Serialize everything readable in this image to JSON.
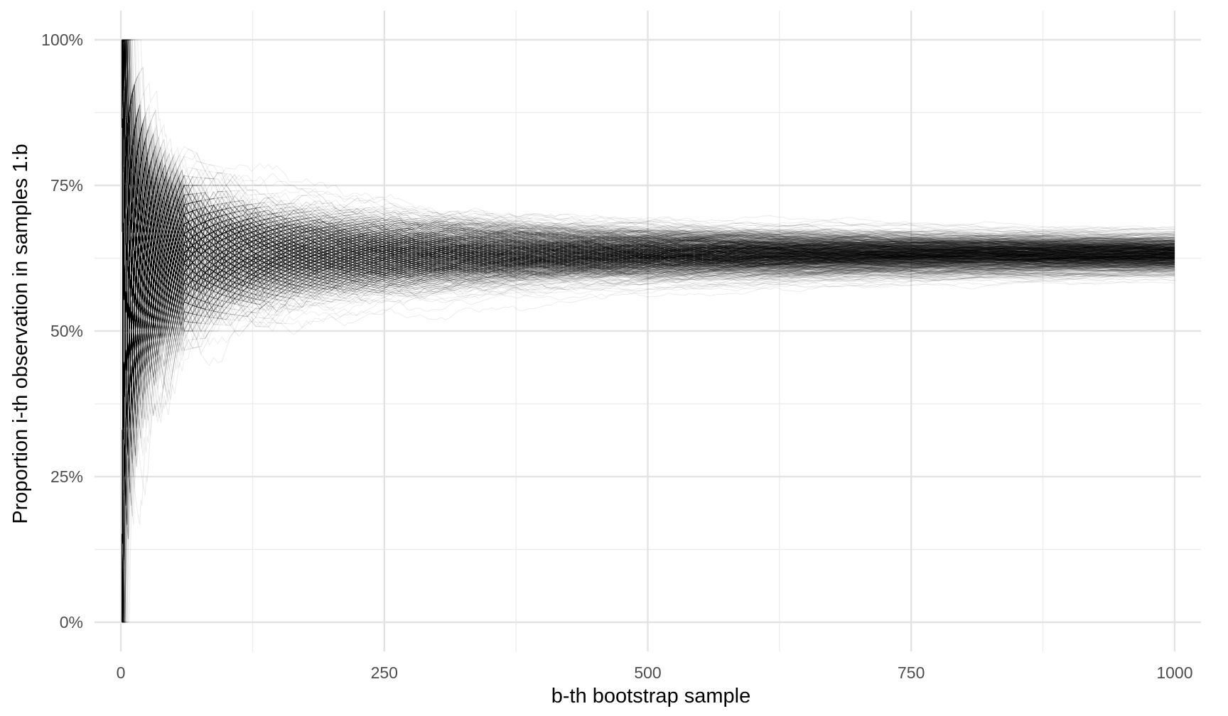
{
  "chart_data": {
    "type": "line",
    "title": "",
    "xlabel": "b-th bootstrap sample",
    "ylabel": "Proportion i-th observation in samples 1:b",
    "x_ticks": [
      0,
      250,
      500,
      750,
      1000
    ],
    "x_tick_labels": [
      "0",
      "250",
      "500",
      "750",
      "1000"
    ],
    "y_ticks": [
      0,
      0.25,
      0.5,
      0.75,
      1.0
    ],
    "y_tick_labels": [
      "0%",
      "25%",
      "50%",
      "75%",
      "100%"
    ],
    "xlim": [
      -25,
      1025
    ],
    "ylim": [
      -0.05,
      1.05
    ],
    "grid": true,
    "legend": "none",
    "line_color": "#000000",
    "line_opacity": 0.07,
    "num_series": 1000,
    "num_bootstrap_samples": 1000,
    "converged_proportion": 0.632,
    "envelope": {
      "b": [
        1,
        5,
        10,
        25,
        50,
        100,
        150,
        250,
        400,
        500,
        750,
        1000
      ],
      "upper": [
        1.0,
        1.0,
        0.95,
        0.88,
        0.82,
        0.77,
        0.75,
        0.73,
        0.71,
        0.7,
        0.68,
        0.67
      ],
      "lower": [
        0.0,
        0.0,
        0.15,
        0.35,
        0.4,
        0.48,
        0.51,
        0.53,
        0.55,
        0.57,
        0.58,
        0.59
      ]
    }
  }
}
